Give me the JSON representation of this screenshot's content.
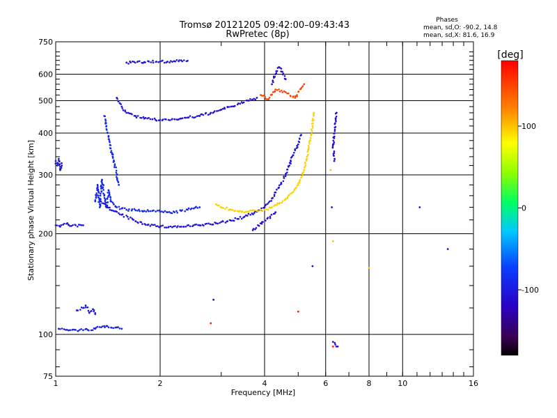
{
  "chart_data": {
    "type": "scatter",
    "title": "Tromsø 20121205 09:42:00–09:43:43",
    "subtitle": "RwPretec (8p)",
    "xlabel": "Frequency [MHz]",
    "ylabel": "Stationary phase Virtual Height [km]",
    "x_scale": "log",
    "y_scale": "log",
    "xlim": [
      1,
      16
    ],
    "ylim": [
      75,
      750
    ],
    "x_ticks": [
      1,
      2,
      4,
      6,
      8,
      10,
      16
    ],
    "y_ticks": [
      75,
      100,
      200,
      300,
      400,
      500,
      600,
      750
    ],
    "x_gridlines": [
      2,
      4,
      6,
      8,
      10
    ],
    "y_gridlines": [
      100,
      200,
      300,
      400,
      500,
      600
    ],
    "stats": {
      "header": "Phases",
      "line_o": "mean, sd,O: -90.2, 14.8",
      "line_x": "mean, sd,X:  81.6, 16.9"
    },
    "colorbar": {
      "label": "[deg]",
      "range": [
        -180,
        180
      ],
      "ticks": [
        100,
        0,
        -100
      ],
      "tick_labels": [
        "100",
        "0",
        "-100"
      ]
    },
    "traces": [
      {
        "phase": -100,
        "points": [
          [
            1.0,
            330
          ],
          [
            1.01,
            320
          ],
          [
            1.02,
            335
          ],
          [
            1.03,
            310
          ],
          [
            1.04,
            325
          ]
        ]
      },
      {
        "phase": -100,
        "points": [
          [
            1.0,
            212
          ],
          [
            1.03,
            210
          ],
          [
            1.05,
            213
          ],
          [
            1.08,
            215
          ],
          [
            1.1,
            211
          ],
          [
            1.2,
            212
          ]
        ]
      },
      {
        "phase": -95,
        "points": [
          [
            1.02,
            104
          ],
          [
            1.1,
            103
          ],
          [
            1.2,
            103
          ],
          [
            1.3,
            104
          ],
          [
            1.4,
            106
          ],
          [
            1.5,
            105
          ],
          [
            1.55,
            104
          ]
        ]
      },
      {
        "phase": -100,
        "points": [
          [
            1.15,
            118
          ],
          [
            1.2,
            120
          ],
          [
            1.22,
            122
          ],
          [
            1.25,
            116
          ],
          [
            1.28,
            119
          ],
          [
            1.3,
            115
          ]
        ]
      },
      {
        "phase": -90,
        "points": [
          [
            1.3,
            250
          ],
          [
            1.32,
            280
          ],
          [
            1.34,
            240
          ],
          [
            1.36,
            290
          ],
          [
            1.38,
            260
          ],
          [
            1.4,
            240
          ],
          [
            1.42,
            270
          ],
          [
            1.44,
            250
          ],
          [
            1.47,
            245
          ],
          [
            1.5,
            240
          ],
          [
            1.55,
            238
          ],
          [
            1.6,
            236
          ],
          [
            1.7,
            235
          ],
          [
            1.8,
            234
          ],
          [
            1.9,
            234
          ],
          [
            2.0,
            233
          ],
          [
            2.1,
            232
          ],
          [
            2.2,
            232
          ],
          [
            2.3,
            234
          ],
          [
            2.4,
            236
          ],
          [
            2.5,
            238
          ],
          [
            2.6,
            240
          ]
        ]
      },
      {
        "phase": -105,
        "points": [
          [
            1.35,
            250
          ],
          [
            1.45,
            235
          ],
          [
            1.55,
            228
          ],
          [
            1.7,
            218
          ],
          [
            1.85,
            213
          ],
          [
            2.0,
            210
          ],
          [
            2.3,
            210
          ],
          [
            2.6,
            212
          ],
          [
            2.9,
            215
          ],
          [
            3.2,
            219
          ],
          [
            3.5,
            225
          ],
          [
            3.8,
            233
          ],
          [
            4.0,
            240
          ],
          [
            4.2,
            255
          ],
          [
            4.4,
            275
          ],
          [
            4.6,
            300
          ],
          [
            4.8,
            340
          ],
          [
            5.0,
            370
          ],
          [
            5.1,
            395
          ]
        ]
      },
      {
        "phase": -90,
        "points": [
          [
            1.38,
            450
          ],
          [
            1.4,
            420
          ],
          [
            1.42,
            390
          ],
          [
            1.44,
            360
          ],
          [
            1.46,
            340
          ],
          [
            1.48,
            320
          ],
          [
            1.5,
            300
          ],
          [
            1.52,
            280
          ]
        ]
      },
      {
        "phase": -105,
        "points": [
          [
            1.5,
            510
          ],
          [
            1.55,
            480
          ],
          [
            1.6,
            460
          ],
          [
            1.7,
            450
          ],
          [
            1.8,
            442
          ],
          [
            1.9,
            440
          ],
          [
            2.0,
            438
          ],
          [
            2.2,
            440
          ],
          [
            2.4,
            445
          ],
          [
            2.6,
            450
          ],
          [
            2.8,
            460
          ],
          [
            3.0,
            470
          ],
          [
            3.2,
            480
          ],
          [
            3.4,
            490
          ],
          [
            3.6,
            500
          ],
          [
            3.8,
            510
          ]
        ]
      },
      {
        "phase": -105,
        "points": [
          [
            1.6,
            650
          ],
          [
            1.8,
            652
          ],
          [
            2.0,
            655
          ],
          [
            2.1,
            654
          ],
          [
            2.3,
            660
          ],
          [
            2.4,
            658
          ]
        ]
      },
      {
        "phase": -110,
        "points": [
          [
            4.2,
            560
          ],
          [
            4.3,
            600
          ],
          [
            4.4,
            630
          ],
          [
            4.5,
            610
          ],
          [
            4.6,
            580
          ]
        ]
      },
      {
        "phase": 95,
        "points": [
          [
            2.9,
            245
          ],
          [
            3.0,
            240
          ],
          [
            3.2,
            236
          ],
          [
            3.4,
            234
          ],
          [
            3.6,
            233
          ],
          [
            3.8,
            234
          ],
          [
            4.0,
            236
          ],
          [
            4.2,
            240
          ],
          [
            4.4,
            246
          ],
          [
            4.6,
            254
          ],
          [
            4.8,
            265
          ],
          [
            5.0,
            280
          ],
          [
            5.2,
            310
          ],
          [
            5.3,
            340
          ],
          [
            5.4,
            380
          ],
          [
            5.5,
            420
          ],
          [
            5.55,
            460
          ]
        ]
      },
      {
        "phase": 150,
        "points": [
          [
            3.9,
            520
          ],
          [
            4.1,
            505
          ],
          [
            4.3,
            540
          ],
          [
            4.6,
            530
          ],
          [
            4.9,
            510
          ],
          [
            5.2,
            560
          ]
        ]
      },
      {
        "phase": 170,
        "points": [
          [
            6.3,
            92
          ],
          [
            5.0,
            117
          ],
          [
            2.8,
            108
          ]
        ]
      },
      {
        "phase": -110,
        "points": [
          [
            2.85,
            127
          ],
          [
            4.3,
            232
          ],
          [
            3.7,
            205
          ],
          [
            6.25,
            240
          ],
          [
            6.45,
            460
          ],
          [
            6.3,
            370
          ],
          [
            6.35,
            330
          ],
          [
            6.3,
            95
          ],
          [
            6.5,
            92
          ],
          [
            11.2,
            240
          ],
          [
            13.5,
            180
          ],
          [
            5.5,
            160
          ]
        ]
      },
      {
        "phase": 100,
        "points": [
          [
            6.2,
            310
          ],
          [
            6.3,
            190
          ],
          [
            8.0,
            158
          ]
        ]
      }
    ]
  }
}
